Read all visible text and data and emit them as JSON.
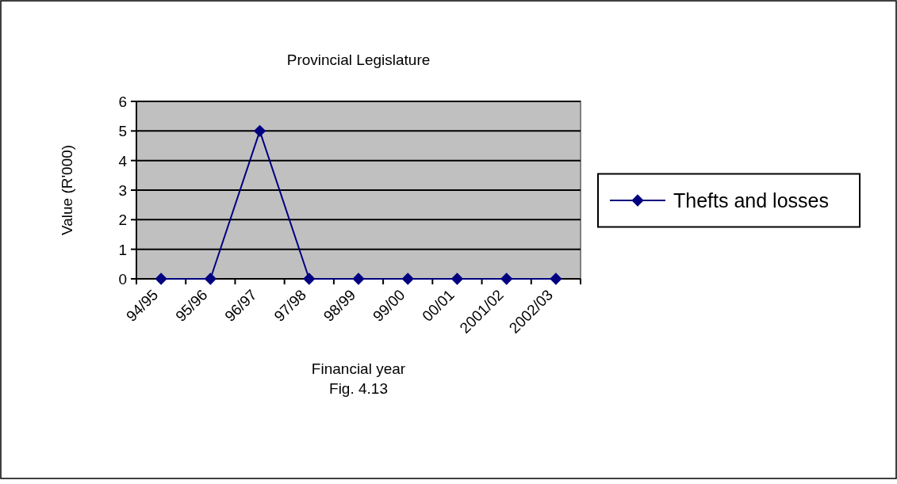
{
  "chart_data": {
    "type": "line",
    "title": "Provincial Legislature",
    "xlabel": "Financial year",
    "ylabel": "Value (R'000)",
    "annotations": [
      "Fig. 4.13"
    ],
    "categories": [
      "94/95",
      "95/96",
      "96/97",
      "97/98",
      "98/99",
      "99/00",
      "00/01",
      "2001/02",
      "2002/03"
    ],
    "series": [
      {
        "name": "Thefts and losses",
        "color": "#000080",
        "values": [
          0,
          0,
          5,
          0,
          0,
          0,
          0,
          0,
          0
        ]
      }
    ],
    "ylim": [
      0,
      6
    ],
    "yticks": [
      0,
      1,
      2,
      3,
      4,
      5,
      6
    ],
    "grid": "y",
    "legend": "right",
    "marker": "diamond",
    "line_style": "solid"
  }
}
